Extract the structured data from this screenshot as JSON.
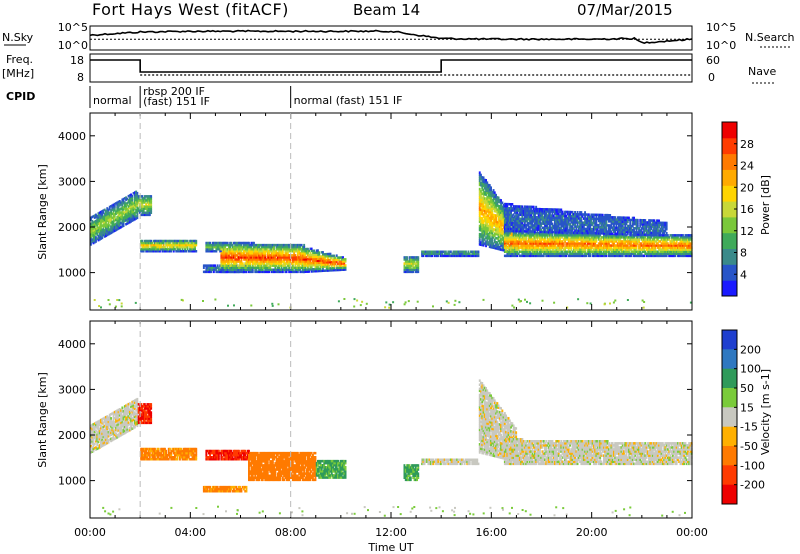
{
  "header": {
    "title": "Fort Hays West (fitACF)",
    "beam": "Beam 14",
    "date": "07/Mar/2015"
  },
  "chart_data": [
    {
      "type": "line",
      "panel": "noise",
      "left_label": "N.Sky",
      "right_label": "N.Search",
      "left_ticks": [
        "10^5",
        "10^0"
      ],
      "right_ticks": [
        "10^5",
        "10^0"
      ],
      "x_hours": [
        0,
        2,
        4,
        6,
        8,
        10,
        12,
        14,
        16,
        18,
        20,
        21.7,
        22,
        24
      ],
      "sky_level": [
        0.62,
        0.75,
        0.78,
        0.78,
        0.78,
        0.78,
        0.78,
        0.48,
        0.45,
        0.45,
        0.45,
        0.48,
        0.3,
        0.45
      ],
      "search_level": [
        0.45,
        0.45,
        0.45,
        0.45,
        0.45,
        0.45,
        0.45,
        0.45,
        0.45,
        0.45,
        0.45,
        0.45,
        0.45,
        0.45
      ]
    },
    {
      "type": "line",
      "panel": "frequency",
      "left_label": "Freq.",
      "left_unit": "[MHz]",
      "right_label": "Nave",
      "left_ticks": [
        "18",
        "8"
      ],
      "right_ticks": [
        "60",
        "0"
      ],
      "freq_segments": [
        {
          "x0": 0,
          "x1": 2,
          "mhz": 17
        },
        {
          "x0": 2,
          "x1": 14,
          "mhz": 11
        },
        {
          "x0": 14,
          "x1": 24,
          "mhz": 17
        }
      ],
      "nave_level": 0.25
    },
    {
      "type": "table",
      "panel": "cpid",
      "label": "CPID",
      "segments": [
        {
          "x0": 0,
          "x1": 2,
          "names": [
            "normal"
          ]
        },
        {
          "x0": 2,
          "x1": 8,
          "names": [
            "rbsp 200 IF",
            "(fast) 151 IF"
          ]
        },
        {
          "x0": 8,
          "x1": 24,
          "names": [
            "normal (fast) 151 IF"
          ]
        }
      ]
    },
    {
      "type": "heatmap",
      "panel": "power",
      "ylabel": "Slant Range [km]",
      "ylim": [
        180,
        4500
      ],
      "yticks": [
        1000,
        2000,
        3000,
        4000
      ],
      "colorbar": {
        "label": "Power [dB]",
        "ticks": [
          4,
          8,
          12,
          16,
          20,
          24,
          28
        ],
        "range": [
          0,
          32
        ],
        "colors": [
          "#1a1aff",
          "#2855c8",
          "#3a8a8a",
          "#3faa5a",
          "#7ac83a",
          "#c8d838",
          "#ffd400",
          "#ffaa00",
          "#ff7a00",
          "#ff3c00",
          "#ee0000"
        ]
      },
      "echoes": [
        {
          "t0": 0.0,
          "t1": 1.9,
          "r0": 1600,
          "r1": 2200,
          "r0e": 2200,
          "r1e": 2800,
          "core": 0.3
        },
        {
          "t0": 1.9,
          "t1": 2.4,
          "r0": 2250,
          "r1": 2700,
          "core": 0.35
        },
        {
          "t0": 2.0,
          "t1": 4.2,
          "r0": 1450,
          "r1": 1700,
          "core": 0.45
        },
        {
          "t0": 4.6,
          "t1": 5.2,
          "r0": 1450,
          "r1": 1650,
          "core": 0.25
        },
        {
          "t0": 4.5,
          "t1": 6.2,
          "r0": 1000,
          "r1": 1150,
          "core": 0.1
        },
        {
          "t0": 5.2,
          "t1": 8.5,
          "r0": 1000,
          "r1": 1650,
          "r0e": 1000,
          "r1e": 1600,
          "core": 0.65
        },
        {
          "t0": 8.5,
          "t1": 10.2,
          "r0": 1000,
          "r1": 1550,
          "r0e": 1050,
          "r1e": 1300,
          "core": 0.65
        },
        {
          "t0": 12.5,
          "t1": 13.1,
          "r0": 1000,
          "r1": 1350,
          "core": 0.35
        },
        {
          "t0": 13.2,
          "t1": 15.5,
          "r0": 1350,
          "r1": 1480,
          "core": 0.15
        },
        {
          "t0": 15.5,
          "t1": 17.0,
          "r0": 1600,
          "r1": 3200,
          "r0e": 1400,
          "r1e": 2100,
          "core": 0.5
        },
        {
          "t0": 16.5,
          "t1": 24.0,
          "r0": 1350,
          "r1": 1900,
          "r0e": 1350,
          "r1e": 1800,
          "core": 0.6
        },
        {
          "t0": 16.5,
          "t1": 23.0,
          "r0": 1900,
          "r1": 2500,
          "r0e": 1800,
          "r1e": 2100,
          "core": 0.05
        }
      ]
    },
    {
      "type": "heatmap",
      "panel": "velocity",
      "ylabel": "Slant Range [km]",
      "xlabel": "Time UT",
      "ylim": [
        180,
        4500
      ],
      "yticks": [
        1000,
        2000,
        3000,
        4000
      ],
      "xticks": [
        "00:00",
        "04:00",
        "08:00",
        "12:00",
        "16:00",
        "20:00",
        "00:00"
      ],
      "xtick_hours": [
        0,
        4,
        8,
        12,
        16,
        20,
        24
      ],
      "colorbar": {
        "label": "Velocity [m s-1]",
        "ticks": [
          "200",
          "100",
          "50",
          "15",
          "-15",
          "-50",
          "-100",
          "-200"
        ],
        "colors": [
          "#1f3fcf",
          "#2f78c0",
          "#2f9a5a",
          "#7acb3a",
          "#c8c8c0",
          "#ffb000",
          "#ff7a00",
          "#ff3a00",
          "#ee0000"
        ]
      },
      "echoes": [
        {
          "t0": 0.0,
          "t1": 1.9,
          "r0": 1600,
          "r1": 2200,
          "r0e": 2200,
          "r1e": 2800,
          "v": 0
        },
        {
          "t0": 1.9,
          "t1": 2.4,
          "r0": 2250,
          "r1": 2700,
          "v": -200
        },
        {
          "t0": 2.0,
          "t1": 4.2,
          "r0": 1450,
          "r1": 1700,
          "v": -60
        },
        {
          "t0": 4.6,
          "t1": 6.3,
          "r0": 1450,
          "r1": 1650,
          "v": -200
        },
        {
          "t0": 4.5,
          "t1": 6.2,
          "r0": 750,
          "r1": 880,
          "v": -60
        },
        {
          "t0": 6.3,
          "t1": 9.0,
          "r0": 1000,
          "r1": 1600,
          "v": -80
        },
        {
          "t0": 9.0,
          "t1": 10.2,
          "r0": 1050,
          "r1": 1450,
          "v": 40
        },
        {
          "t0": 12.5,
          "t1": 13.1,
          "r0": 1000,
          "r1": 1350,
          "v": 40
        },
        {
          "t0": 13.2,
          "t1": 15.5,
          "r0": 1350,
          "r1": 1480,
          "v": 0
        },
        {
          "t0": 15.5,
          "t1": 17.0,
          "r0": 1600,
          "r1": 3200,
          "r0e": 1400,
          "r1e": 2100,
          "v": 0
        },
        {
          "t0": 16.5,
          "t1": 24.0,
          "r0": 1350,
          "r1": 1900,
          "r0e": 1350,
          "r1e": 1800,
          "v": 0
        }
      ]
    }
  ]
}
